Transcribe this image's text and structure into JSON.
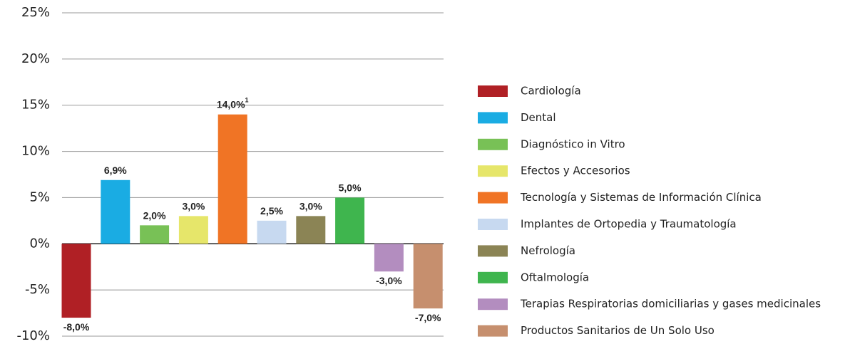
{
  "chart_data": {
    "type": "bar",
    "categories": [
      "Cardiología",
      "Dental",
      "Diagnóstico in Vitro",
      "Efectos y Accesorios",
      "Tecnología y Sistemas de Información Clínica",
      "Implantes de Ortopedia y Traumatología",
      "Nefrología",
      "Oftalmología",
      "Terapias Respiratorias domiciliarias y gases medicinales",
      "Productos Sanitarios de Un Solo Uso"
    ],
    "values": [
      -8.0,
      6.9,
      2.0,
      3.0,
      14.0,
      2.5,
      3.0,
      5.0,
      -3.0,
      -7.0
    ],
    "value_labels": [
      "-8,0%",
      "6,9%",
      "2,0%",
      "3,0%",
      "14,0%",
      "2,5%",
      "3,0%",
      "5,0%",
      "-3,0%",
      "-7,0%"
    ],
    "footnote_marks": [
      null,
      null,
      null,
      null,
      "1",
      null,
      null,
      null,
      null,
      null
    ],
    "colors": [
      "#b02025",
      "#1aace3",
      "#78c156",
      "#e6e66a",
      "#f07425",
      "#c7d9f0",
      "#8b8455",
      "#3fb54e",
      "#b38dbf",
      "#c68f6e"
    ],
    "ylim": [
      -10,
      25
    ],
    "yticks": [
      {
        "value": -10,
        "label": "-10%"
      },
      {
        "value": -5,
        "label": "-5%"
      },
      {
        "value": 0,
        "label": "0%"
      },
      {
        "value": 5,
        "label": "5%"
      },
      {
        "value": 10,
        "label": "10%"
      },
      {
        "value": 15,
        "label": "15%"
      },
      {
        "value": 20,
        "label": "20%"
      },
      {
        "value": 25,
        "label": "25%"
      }
    ],
    "grid": true,
    "legend": "right"
  }
}
